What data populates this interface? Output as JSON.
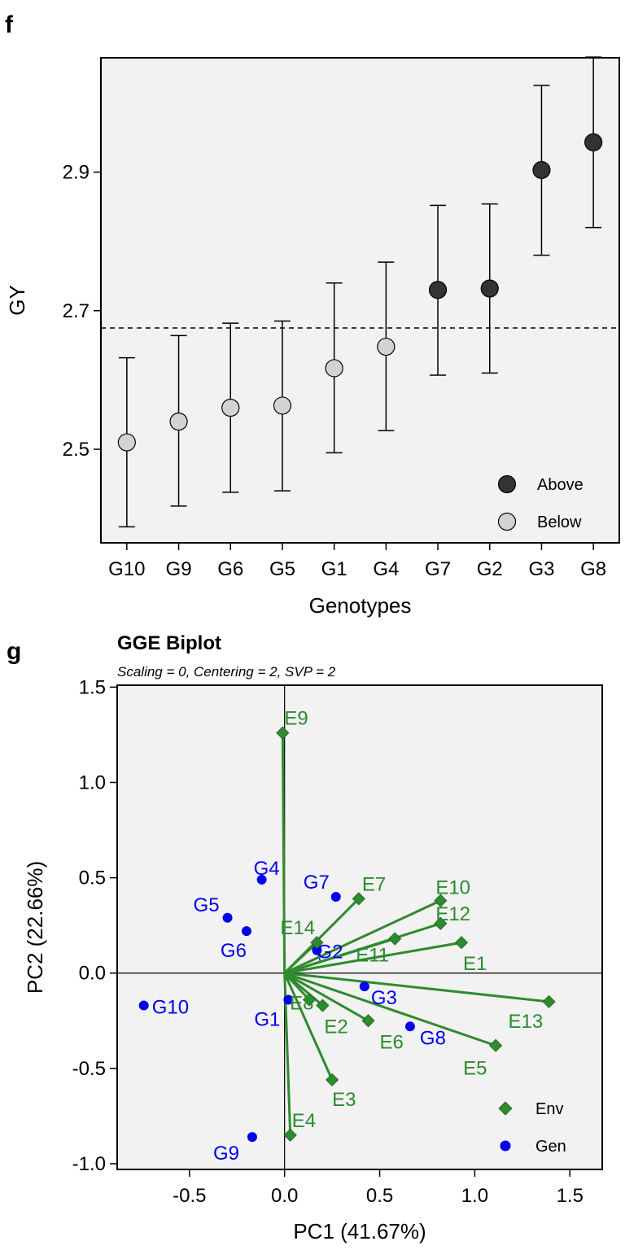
{
  "colors": {
    "panel_bg": "#f2f2f2",
    "above": "#333333",
    "below": "#d3d3d3",
    "env": "#2e8b2e",
    "gen": "#0000ee",
    "gen_segment": "#0000ee"
  },
  "chart_data": [
    {
      "type": "scatter",
      "panel": "f",
      "xlabel": "Genotypes",
      "ylabel": "GY",
      "categories": [
        "G10",
        "G9",
        "G6",
        "G5",
        "G1",
        "G4",
        "G7",
        "G2",
        "G3",
        "G8"
      ],
      "y_ticks": [
        "2.5",
        "2.7",
        "2.9"
      ],
      "ylim": [
        2.365,
        3.065
      ],
      "mean_line": 2.675,
      "grid": false,
      "legend_placement": "bottom-right",
      "points": [
        {
          "genotype": "G10",
          "mean": 2.51,
          "lower": 2.388,
          "upper": 2.632,
          "group": "Below"
        },
        {
          "genotype": "G9",
          "mean": 2.54,
          "lower": 2.418,
          "upper": 2.664,
          "group": "Below"
        },
        {
          "genotype": "G6",
          "mean": 2.56,
          "lower": 2.438,
          "upper": 2.682,
          "group": "Below"
        },
        {
          "genotype": "G5",
          "mean": 2.563,
          "lower": 2.44,
          "upper": 2.685,
          "group": "Below"
        },
        {
          "genotype": "G1",
          "mean": 2.617,
          "lower": 2.495,
          "upper": 2.74,
          "group": "Below"
        },
        {
          "genotype": "G4",
          "mean": 2.648,
          "lower": 2.527,
          "upper": 2.77,
          "group": "Below"
        },
        {
          "genotype": "G7",
          "mean": 2.73,
          "lower": 2.607,
          "upper": 2.852,
          "group": "Above"
        },
        {
          "genotype": "G2",
          "mean": 2.732,
          "lower": 2.61,
          "upper": 2.854,
          "group": "Above"
        },
        {
          "genotype": "G3",
          "mean": 2.903,
          "lower": 2.78,
          "upper": 3.025,
          "group": "Above"
        },
        {
          "genotype": "G8",
          "mean": 2.943,
          "lower": 2.82,
          "upper": 3.066,
          "group": "Above"
        }
      ],
      "legend": [
        {
          "name": "Above",
          "group": "Above"
        },
        {
          "name": "Below",
          "group": "Below"
        }
      ]
    },
    {
      "type": "scatter",
      "panel": "g",
      "title": "GGE Biplot",
      "subtitle": "Scaling = 0, Centering = 2, SVP = 2",
      "xlabel": "PC1 (41.67%)",
      "ylabel": "PC2 (22.66%)",
      "xlim": [
        -0.88,
        1.67
      ],
      "ylim": [
        -1.03,
        1.51
      ],
      "x_ticks": [
        -0.5,
        0.0,
        0.5,
        1.0,
        1.5
      ],
      "y_ticks": [
        -1.0,
        -0.5,
        0.0,
        0.5,
        1.0,
        1.5
      ],
      "x_tick_labels": [
        "-0.5",
        "0.0",
        "0.5",
        "1.0",
        "1.5"
      ],
      "y_tick_labels": [
        "-1.0",
        "-0.5",
        "0.0",
        "0.5",
        "1.0",
        "1.5"
      ],
      "grid": false,
      "legend_placement": "bottom-right",
      "environments": [
        {
          "label": "E1",
          "x": 0.93,
          "y": 0.16
        },
        {
          "label": "E2",
          "x": 0.2,
          "y": -0.17
        },
        {
          "label": "E3",
          "x": 0.25,
          "y": -0.56
        },
        {
          "label": "E4",
          "x": 0.03,
          "y": -0.85
        },
        {
          "label": "E5",
          "x": 1.11,
          "y": -0.38
        },
        {
          "label": "E6",
          "x": 0.44,
          "y": -0.25
        },
        {
          "label": "E7",
          "x": 0.39,
          "y": 0.39
        },
        {
          "label": "E8",
          "x": 0.13,
          "y": -0.14
        },
        {
          "label": "E9",
          "x": -0.01,
          "y": 1.26
        },
        {
          "label": "E10",
          "x": 0.82,
          "y": 0.38
        },
        {
          "label": "E11",
          "x": 0.58,
          "y": 0.18
        },
        {
          "label": "E12",
          "x": 0.82,
          "y": 0.26
        },
        {
          "label": "E13",
          "x": 1.39,
          "y": -0.15
        },
        {
          "label": "E14",
          "x": 0.17,
          "y": 0.16
        }
      ],
      "genotypes": [
        {
          "label": "G1",
          "x": 0.02,
          "y": -0.14
        },
        {
          "label": "G2",
          "x": 0.17,
          "y": 0.12
        },
        {
          "label": "G3",
          "x": 0.42,
          "y": -0.07
        },
        {
          "label": "G4",
          "x": -0.12,
          "y": 0.49
        },
        {
          "label": "G5",
          "x": -0.3,
          "y": 0.29
        },
        {
          "label": "G6",
          "x": -0.2,
          "y": 0.22
        },
        {
          "label": "G7",
          "x": 0.27,
          "y": 0.4
        },
        {
          "label": "G8",
          "x": 0.66,
          "y": -0.28
        },
        {
          "label": "G9",
          "x": -0.17,
          "y": -0.86
        },
        {
          "label": "G10",
          "x": -0.74,
          "y": -0.17
        }
      ],
      "legend": [
        {
          "name": "Env",
          "kind": "env"
        },
        {
          "name": "Gen",
          "kind": "gen"
        }
      ]
    }
  ],
  "panels": {
    "f_label": "f",
    "g_label": "g"
  }
}
